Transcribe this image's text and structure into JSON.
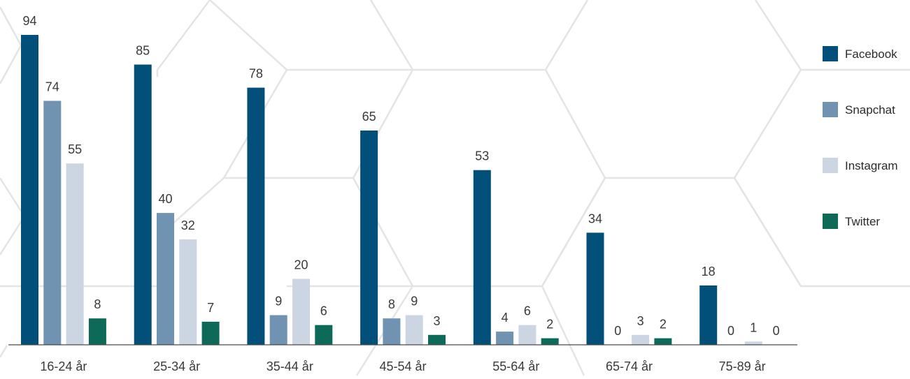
{
  "chart_data": {
    "type": "bar",
    "categories": [
      "16-24 år",
      "25-34 år",
      "35-44 år",
      "45-54 år",
      "55-64 år",
      "65-74 år",
      "75-89 år"
    ],
    "series": [
      {
        "name": "Facebook",
        "color": "#02507a",
        "values": [
          94,
          85,
          78,
          65,
          53,
          34,
          18
        ]
      },
      {
        "name": "Snapchat",
        "color": "#7093b1",
        "values": [
          74,
          40,
          9,
          8,
          4,
          0,
          0
        ]
      },
      {
        "name": "Instagram",
        "color": "#ccd6e2",
        "values": [
          55,
          32,
          20,
          9,
          6,
          3,
          1
        ]
      },
      {
        "name": "Twitter",
        "color": "#0e6a58",
        "values": [
          8,
          7,
          6,
          3,
          2,
          2,
          0
        ]
      }
    ],
    "ylim": [
      0,
      100
    ],
    "grid": false,
    "legend": "right",
    "data_labels": true
  }
}
